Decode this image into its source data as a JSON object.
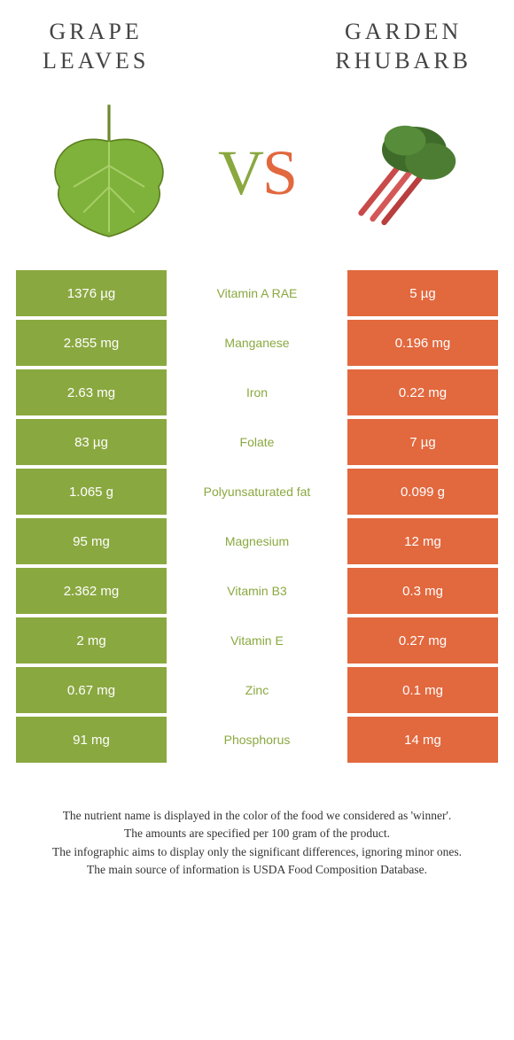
{
  "left_food": {
    "title_line1": "GRAPE",
    "title_line2": "LEAVES",
    "color": "#8aa840"
  },
  "right_food": {
    "title_line1": "GARDEN",
    "title_line2": "RHUBARB",
    "color": "#e2683e"
  },
  "vs": {
    "v": "V",
    "s": "S"
  },
  "colors": {
    "left_bg": "#8aa840",
    "right_bg": "#e2683e",
    "mid_winner_left": "#8aa840",
    "cell_text": "#ffffff"
  },
  "rows": [
    {
      "left": "1376 µg",
      "label": "Vitamin A RAE",
      "right": "5 µg",
      "winner": "left"
    },
    {
      "left": "2.855 mg",
      "label": "Manganese",
      "right": "0.196 mg",
      "winner": "left"
    },
    {
      "left": "2.63 mg",
      "label": "Iron",
      "right": "0.22 mg",
      "winner": "left"
    },
    {
      "left": "83 µg",
      "label": "Folate",
      "right": "7 µg",
      "winner": "left"
    },
    {
      "left": "1.065 g",
      "label": "Polyunsaturated fat",
      "right": "0.099 g",
      "winner": "left"
    },
    {
      "left": "95 mg",
      "label": "Magnesium",
      "right": "12 mg",
      "winner": "left"
    },
    {
      "left": "2.362 mg",
      "label": "Vitamin B3",
      "right": "0.3 mg",
      "winner": "left"
    },
    {
      "left": "2 mg",
      "label": "Vitamin E",
      "right": "0.27 mg",
      "winner": "left"
    },
    {
      "left": "0.67 mg",
      "label": "Zinc",
      "right": "0.1 mg",
      "winner": "left"
    },
    {
      "left": "91 mg",
      "label": "Phosphorus",
      "right": "14 mg",
      "winner": "left"
    }
  ],
  "footer": {
    "line1": "The nutrient name is displayed in the color of the food we considered as 'winner'.",
    "line2": "The amounts are specified per 100 gram of the product.",
    "line3": "The infographic aims to display only the significant differences, ignoring minor ones.",
    "line4": "The main source of information is USDA Food Composition Database."
  }
}
